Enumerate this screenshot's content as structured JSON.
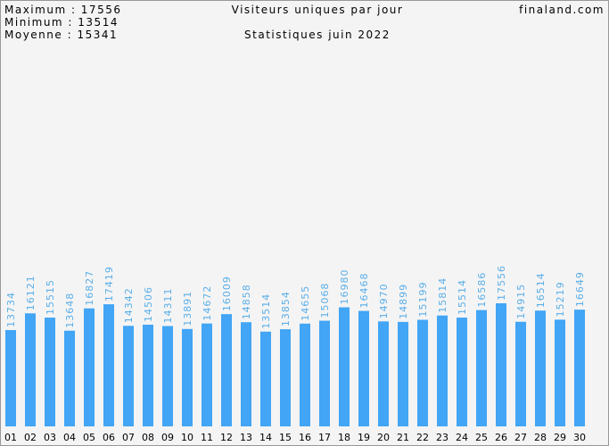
{
  "chart_data": {
    "type": "bar",
    "title": "Visiteurs uniques par jour",
    "subtitle": "Statistiques juin 2022",
    "site": "finaland.com",
    "stats": [
      "Maximum : 17556",
      "Minimum : 13514",
      "Moyenne : 15341"
    ],
    "categories": [
      "01",
      "02",
      "03",
      "04",
      "05",
      "06",
      "07",
      "08",
      "09",
      "10",
      "11",
      "12",
      "13",
      "14",
      "15",
      "16",
      "17",
      "18",
      "19",
      "20",
      "21",
      "22",
      "23",
      "24",
      "25",
      "26",
      "27",
      "28",
      "29",
      "30"
    ],
    "values": [
      13734,
      16121,
      15515,
      13648,
      16827,
      17419,
      14342,
      14506,
      14311,
      13891,
      14672,
      16009,
      14858,
      13514,
      13854,
      14655,
      15068,
      16980,
      16468,
      14970,
      14899,
      15199,
      15814,
      15514,
      16586,
      17556,
      14915,
      16514,
      15219,
      16649
    ],
    "color": "#42a5f5"
  }
}
